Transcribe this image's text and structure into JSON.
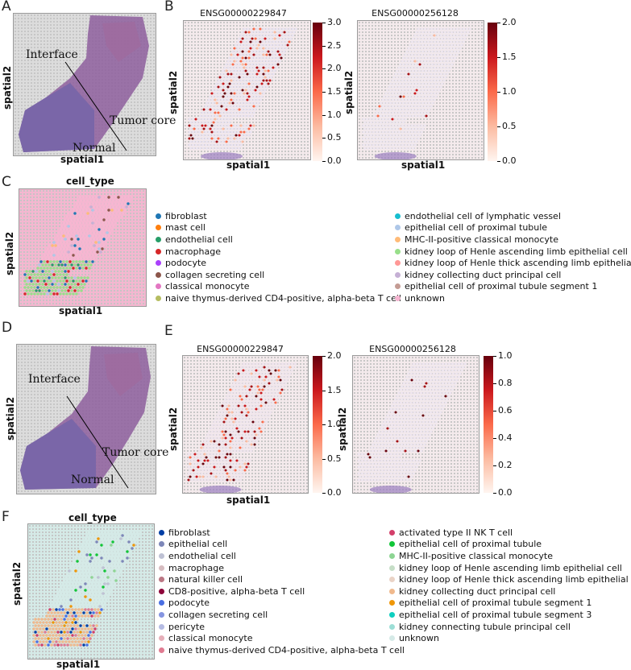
{
  "panels": {
    "A": {
      "letter": "A",
      "ann_interface": "Interface",
      "ann_tumor": "Tumor core",
      "ann_normal": "Normal",
      "xlabel": "spatial1",
      "ylabel": "spatial2"
    },
    "B": {
      "letter": "B",
      "left": {
        "title": "ENSG00000229847",
        "xlabel": "spatial1",
        "ylabel": "spatial2",
        "ticks": [
          "3.0",
          "2.5",
          "2.0",
          "1.5",
          "1.0",
          "0.5",
          "0.0"
        ]
      },
      "right": {
        "title": "ENSG00000256128",
        "xlabel": "spatial1",
        "ylabel": "spatial2",
        "ticks": [
          "2.0",
          "1.5",
          "1.0",
          "0.5",
          "0.0"
        ]
      }
    },
    "C": {
      "letter": "C",
      "title": "cell_type",
      "xlabel": "spatial1",
      "ylabel": "spatial2",
      "legend_left": [
        {
          "label": "fibroblast",
          "color": "#1f77b4"
        },
        {
          "label": "mast cell",
          "color": "#ff7f0e"
        },
        {
          "label": "endothelial cell",
          "color": "#279e68"
        },
        {
          "label": "macrophage",
          "color": "#d62728"
        },
        {
          "label": "podocyte",
          "color": "#aa40fc"
        },
        {
          "label": "collagen secreting cell",
          "color": "#8c564b"
        },
        {
          "label": "classical monocyte",
          "color": "#e377c2"
        },
        {
          "label": "naive thymus-derived CD4-positive, alpha-beta T cell",
          "color": "#b5bd61"
        }
      ],
      "legend_right": [
        {
          "label": "endothelial cell of lymphatic vessel",
          "color": "#17becf"
        },
        {
          "label": "epithelial cell of proximal tubule",
          "color": "#aec7e8"
        },
        {
          "label": "MHC-II-positive classical monocyte",
          "color": "#ffbb78"
        },
        {
          "label": "kidney loop of Henle ascending limb epithelial cell",
          "color": "#98df8a"
        },
        {
          "label": "kidney loop of Henle thick ascending limb epithelial cell",
          "color": "#ff9896"
        },
        {
          "label": "kidney collecting duct principal cell",
          "color": "#c5b0d5"
        },
        {
          "label": "epithelial cell of proximal tubule segment 1",
          "color": "#c49c94"
        },
        {
          "label": "unknown",
          "color": "#f7b6d2"
        }
      ]
    },
    "D": {
      "letter": "D",
      "ann_interface": "Interface",
      "ann_tumor": "Tumor core",
      "ann_normal": "Normal",
      "xlabel": "spatial1",
      "ylabel": "spatial2"
    },
    "E": {
      "letter": "E",
      "left": {
        "title": "ENSG00000229847",
        "xlabel": "spatial1",
        "ylabel": "spatial2",
        "ticks": [
          "2.0",
          "1.5",
          "1.0",
          "0.5",
          "0.0"
        ]
      },
      "right": {
        "title": "ENSG00000256128",
        "xlabel": "spatial1",
        "ylabel": "spatial2",
        "ticks": [
          "1.0",
          "0.8",
          "0.6",
          "0.4",
          "0.2",
          "0.0"
        ]
      }
    },
    "F": {
      "letter": "F",
      "title": "cell_type",
      "xlabel": "spatial1",
      "ylabel": "spatial2",
      "legend_left": [
        {
          "label": "fibroblast",
          "color": "#023fa5"
        },
        {
          "label": "epithelial cell",
          "color": "#7d87b9"
        },
        {
          "label": "endothelial cell",
          "color": "#bec1d4"
        },
        {
          "label": "macrophage",
          "color": "#d6bcc0"
        },
        {
          "label": "natural killer cell",
          "color": "#bb7784"
        },
        {
          "label": "CD8-positive, alpha-beta T cell",
          "color": "#8e063b"
        },
        {
          "label": "podocyte",
          "color": "#4a6fe3"
        },
        {
          "label": "collagen secreting cell",
          "color": "#8595e1"
        },
        {
          "label": "pericyte",
          "color": "#b5bbe3"
        },
        {
          "label": "classical monocyte",
          "color": "#e6afb9"
        },
        {
          "label": "naive thymus-derived CD4-positive, alpha-beta T cell",
          "color": "#e07b91"
        }
      ],
      "legend_right": [
        {
          "label": "activated type II NK T cell",
          "color": "#d33f6a"
        },
        {
          "label": "epithelial cell of proximal tubule",
          "color": "#11c638"
        },
        {
          "label": "MHC-II-positive classical monocyte",
          "color": "#8dd593"
        },
        {
          "label": "kidney loop of Henle ascending limb epithelial cell",
          "color": "#c6dec7"
        },
        {
          "label": "kidney loop of Henle thick ascending limb epithelial cell",
          "color": "#ead3c6"
        },
        {
          "label": "kidney collecting duct principal cell",
          "color": "#f0b98d"
        },
        {
          "label": "epithelial cell of proximal tubule segment 1",
          "color": "#ef9708"
        },
        {
          "label": "epithelial cell of proximal tubule segment 3",
          "color": "#0fcfc0"
        },
        {
          "label": "kidney connecting tubule principal cell",
          "color": "#9cded6"
        },
        {
          "label": "unknown",
          "color": "#d5eae7"
        }
      ]
    }
  }
}
